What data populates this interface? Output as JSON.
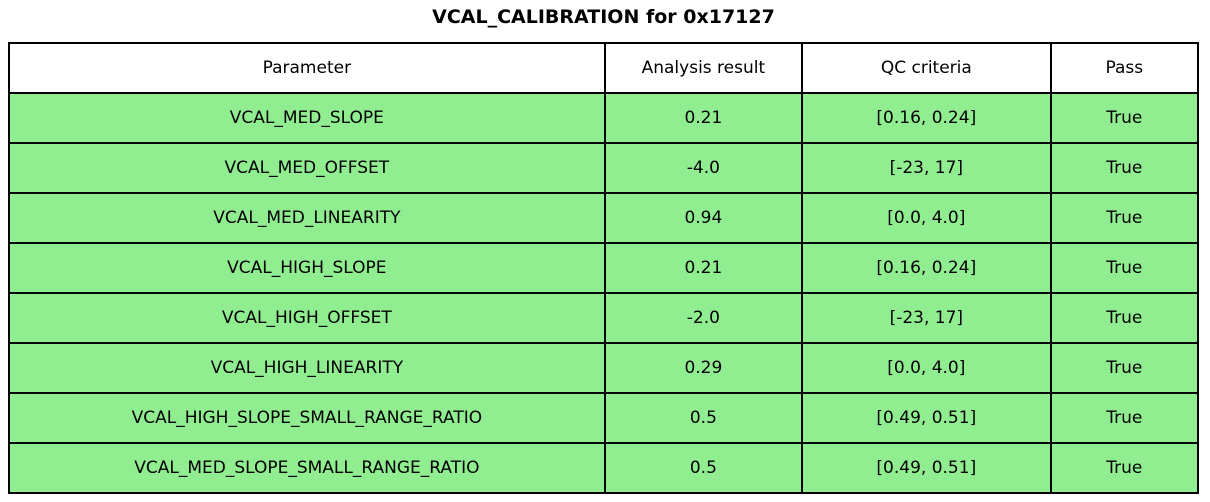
{
  "title": "VCAL_CALIBRATION for 0x17127",
  "chart_data": {
    "type": "table",
    "title": "VCAL_CALIBRATION for 0x17127",
    "columns": [
      "Parameter",
      "Analysis result",
      "QC criteria",
      "Pass"
    ],
    "rows": [
      [
        "VCAL_MED_SLOPE",
        "0.21",
        "[0.16, 0.24]",
        "True"
      ],
      [
        "VCAL_MED_OFFSET",
        "-4.0",
        "[-23, 17]",
        "True"
      ],
      [
        "VCAL_MED_LINEARITY",
        "0.94",
        "[0.0, 4.0]",
        "True"
      ],
      [
        "VCAL_HIGH_SLOPE",
        "0.21",
        "[0.16, 0.24]",
        "True"
      ],
      [
        "VCAL_HIGH_OFFSET",
        "-2.0",
        "[-23, 17]",
        "True"
      ],
      [
        "VCAL_HIGH_LINEARITY",
        "0.29",
        "[0.0, 4.0]",
        "True"
      ],
      [
        "VCAL_HIGH_SLOPE_SMALL_RANGE_RATIO",
        "0.5",
        "[0.49, 0.51]",
        "True"
      ],
      [
        "VCAL_MED_SLOPE_SMALL_RANGE_RATIO",
        "0.5",
        "[0.49, 0.51]",
        "True"
      ]
    ],
    "all_rows_pass": true,
    "legend_position": "none",
    "grid": "table-borders"
  },
  "colors": {
    "row_bg": "#90EE90",
    "header_bg": "#ffffff",
    "border": "#000000",
    "text": "#000000",
    "figure_bg": "#ffffff"
  }
}
